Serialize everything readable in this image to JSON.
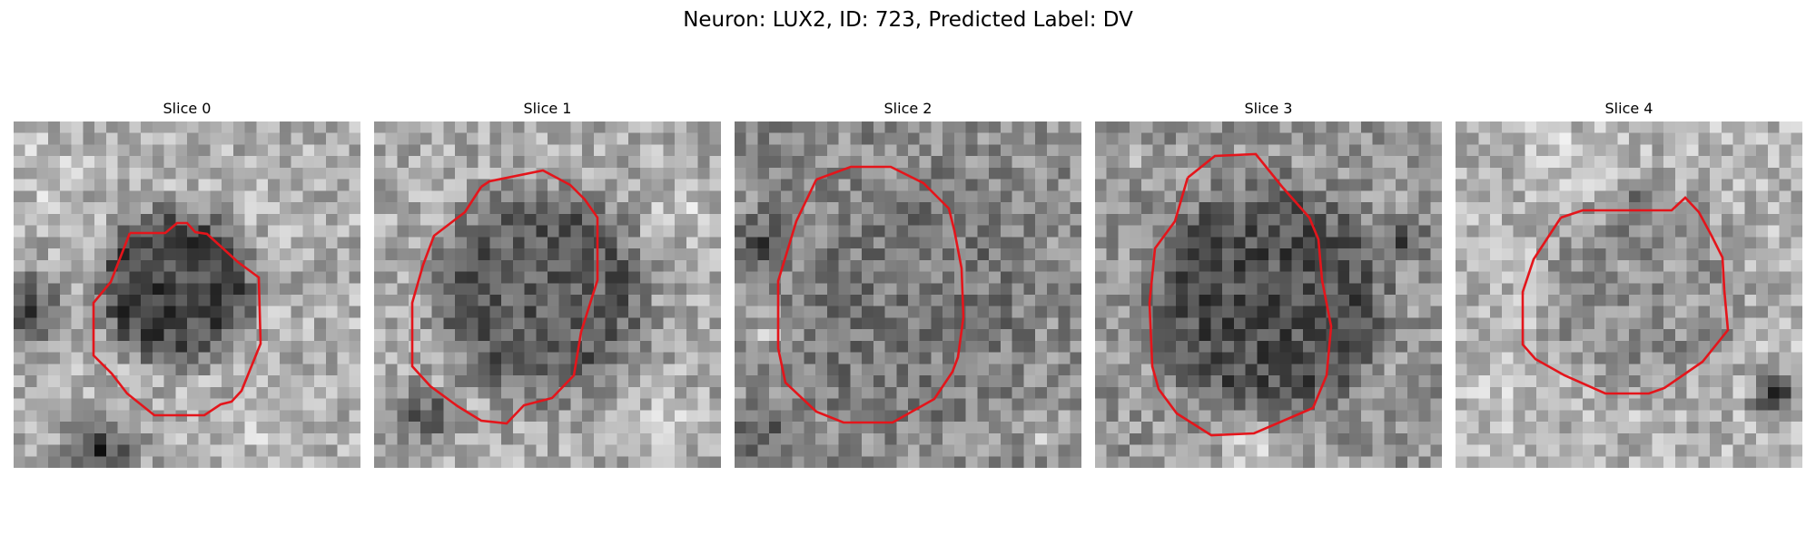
{
  "figure": {
    "title": "Neuron: LUX2, ID: 723, Predicted Label: DV"
  },
  "panels": [
    {
      "title": "Slice 0"
    },
    {
      "title": "Slice 1"
    },
    {
      "title": "Slice 2"
    },
    {
      "title": "Slice 3"
    },
    {
      "title": "Slice 4"
    }
  ],
  "colors": {
    "outline": "#e4151b",
    "background": "#ffffff",
    "text": "#000000"
  }
}
